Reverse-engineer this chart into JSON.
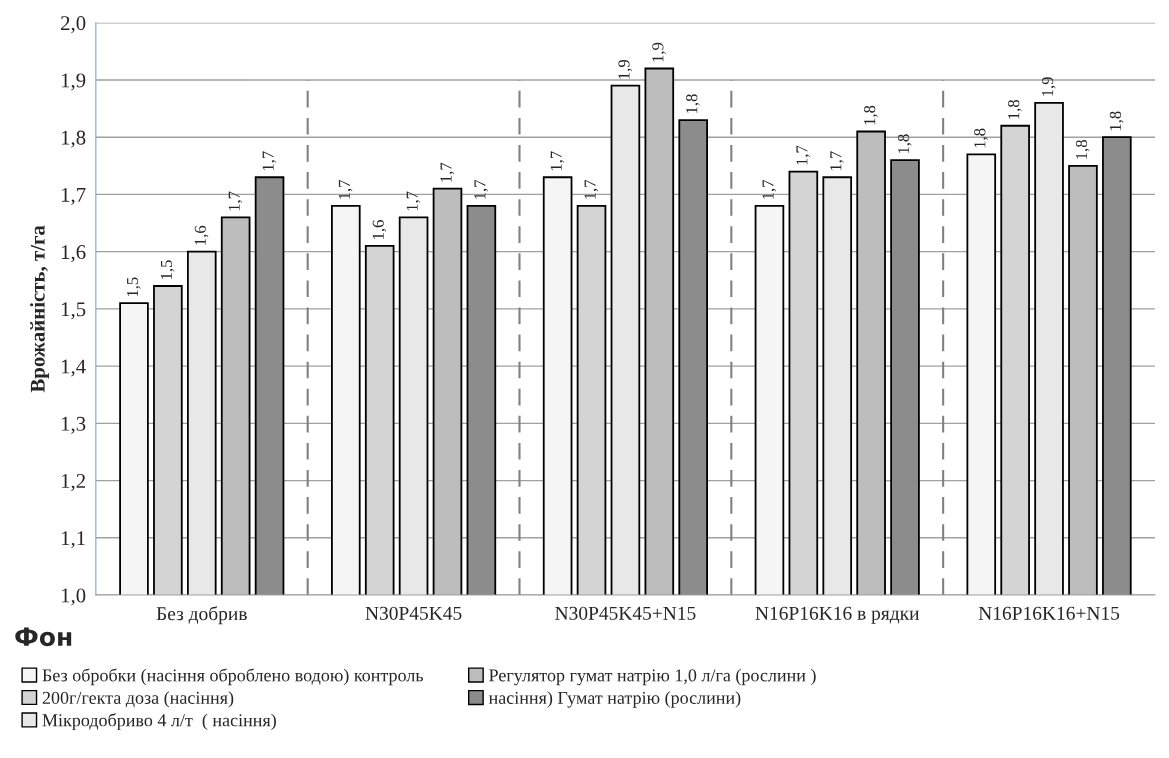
{
  "chart_data": {
    "type": "bar",
    "ylabel": "Врожайність, т/га",
    "xlabel": "Фон",
    "categories": [
      "Без добрив",
      "N30P45K45",
      "N30P45K45+N15",
      "N16P16K16 в рядки",
      "N16P16K16+N15"
    ],
    "series": [
      {
        "name": "Без обробки (насіння оброблено водою) контроль",
        "color": "#f5f5f5",
        "values": [
          1.51,
          1.68,
          1.73,
          1.68,
          1.77
        ],
        "value_labels": [
          "1,5",
          "1,7",
          "1,7",
          "1,7",
          "1,8"
        ]
      },
      {
        "name": "200г/гекта доза (насіння)",
        "color": "#d4d4d4",
        "values": [
          1.54,
          1.61,
          1.68,
          1.74,
          1.82
        ],
        "value_labels": [
          "1,5",
          "1,6",
          "1,7",
          "1,7",
          "1,8"
        ]
      },
      {
        "name": "Мікродобриво 4 л/т  ( насіння)",
        "color": "#e8e8e8",
        "values": [
          1.6,
          1.66,
          1.89,
          1.73,
          1.86
        ],
        "value_labels": [
          "1,6",
          "1,7",
          "1,9",
          "1,7",
          "1,9"
        ]
      },
      {
        "name": "Регулятор гумат натрію 1,0 л/га (рослини )",
        "color": "#bdbdbd",
        "values": [
          1.66,
          1.71,
          1.92,
          1.81,
          1.75
        ],
        "value_labels": [
          "1,7",
          "1,7",
          "1,9",
          "1,8",
          "1,8"
        ]
      },
      {
        "name": "насіння) Гумат натрію (рослини)",
        "color": "#8c8c8c",
        "values": [
          1.73,
          1.68,
          1.83,
          1.76,
          1.8
        ],
        "value_labels": [
          "1,7",
          "1,7",
          "1,8",
          "1,8",
          "1,8"
        ]
      }
    ],
    "ylim": [
      1.0,
      2.0
    ],
    "yticks": [
      {
        "value": 1.0,
        "label": "1,0"
      },
      {
        "value": 1.1,
        "label": "1,1"
      },
      {
        "value": 1.2,
        "label": "1,2"
      },
      {
        "value": 1.3,
        "label": "1,3"
      },
      {
        "value": 1.4,
        "label": "1,4"
      },
      {
        "value": 1.5,
        "label": "1,5"
      },
      {
        "value": 1.6,
        "label": "1,6"
      },
      {
        "value": 1.7,
        "label": "1,7"
      },
      {
        "value": 1.8,
        "label": "1,8"
      },
      {
        "value": 1.9,
        "label": "1,9"
      },
      {
        "value": 2.0,
        "label": "2,0"
      }
    ],
    "grid": "y",
    "legend": "bottom"
  }
}
